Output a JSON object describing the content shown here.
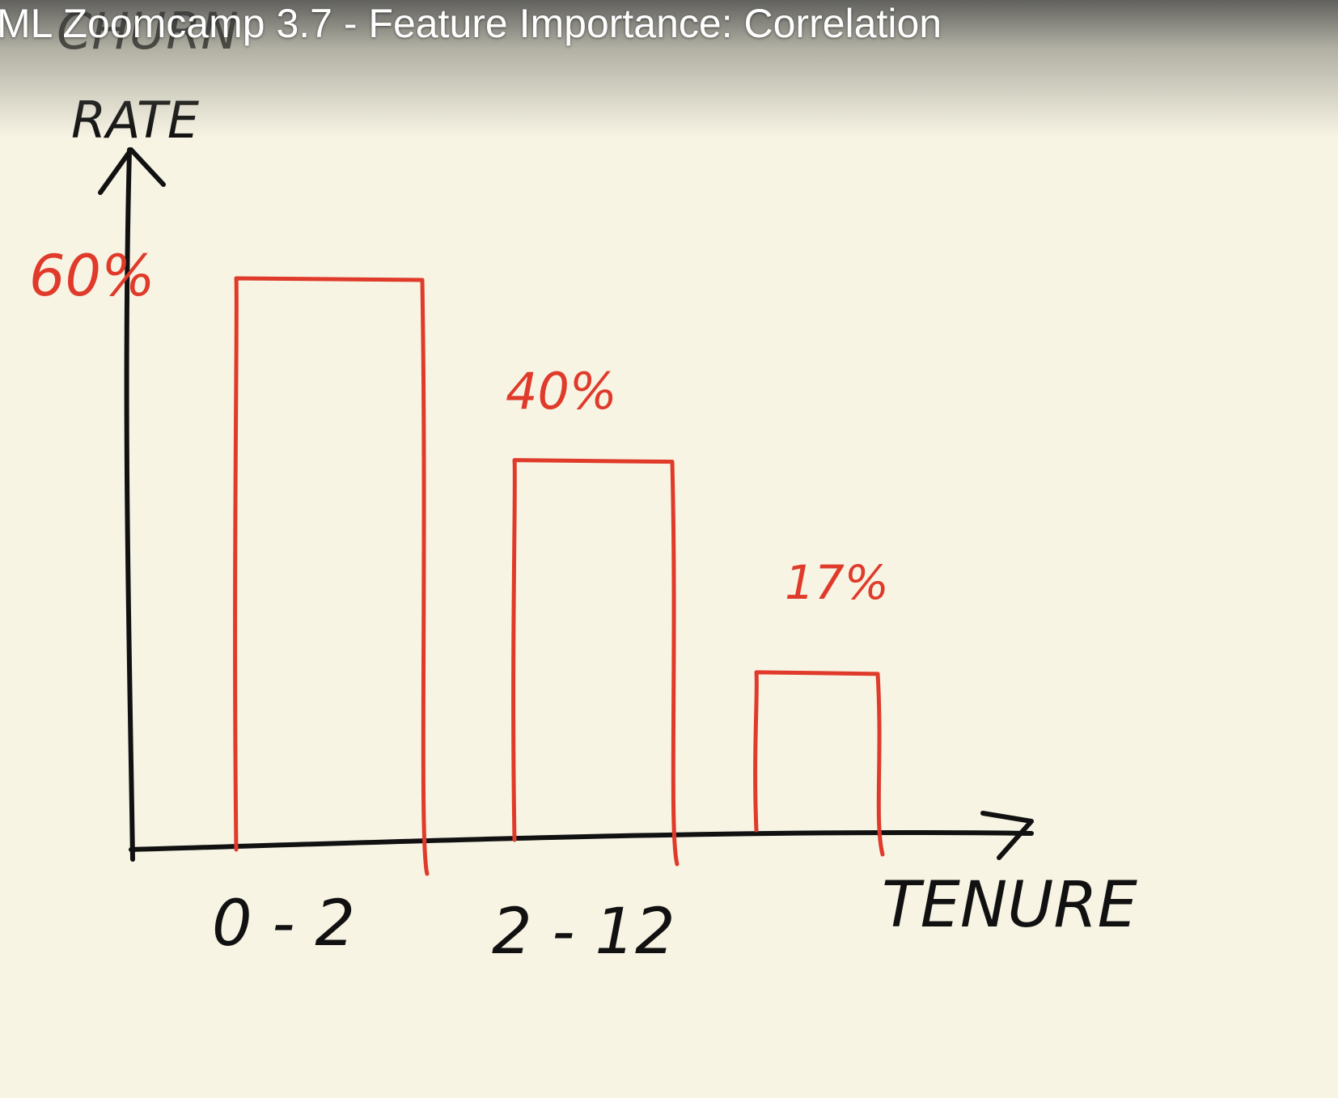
{
  "video": {
    "title": "ML Zoomcamp 3.7 - Feature Importance: Correlation"
  },
  "colors": {
    "background": "#f7f4e4",
    "ink": "#111111",
    "bars": "#e03a2a"
  },
  "chart_data": {
    "type": "bar",
    "title": "",
    "ylabel": "CHURN RATE",
    "xlabel": "TENURE",
    "categories": [
      "0-2",
      "2-12",
      ""
    ],
    "category_labels": [
      "0 - 2",
      "2 - 12",
      ""
    ],
    "values": [
      60,
      40,
      17
    ],
    "data_labels": [
      "60%",
      "40%",
      "17%"
    ],
    "ylim": [
      0,
      70
    ],
    "grid": false,
    "legend": "none",
    "style": "hand-drawn outline bars"
  }
}
